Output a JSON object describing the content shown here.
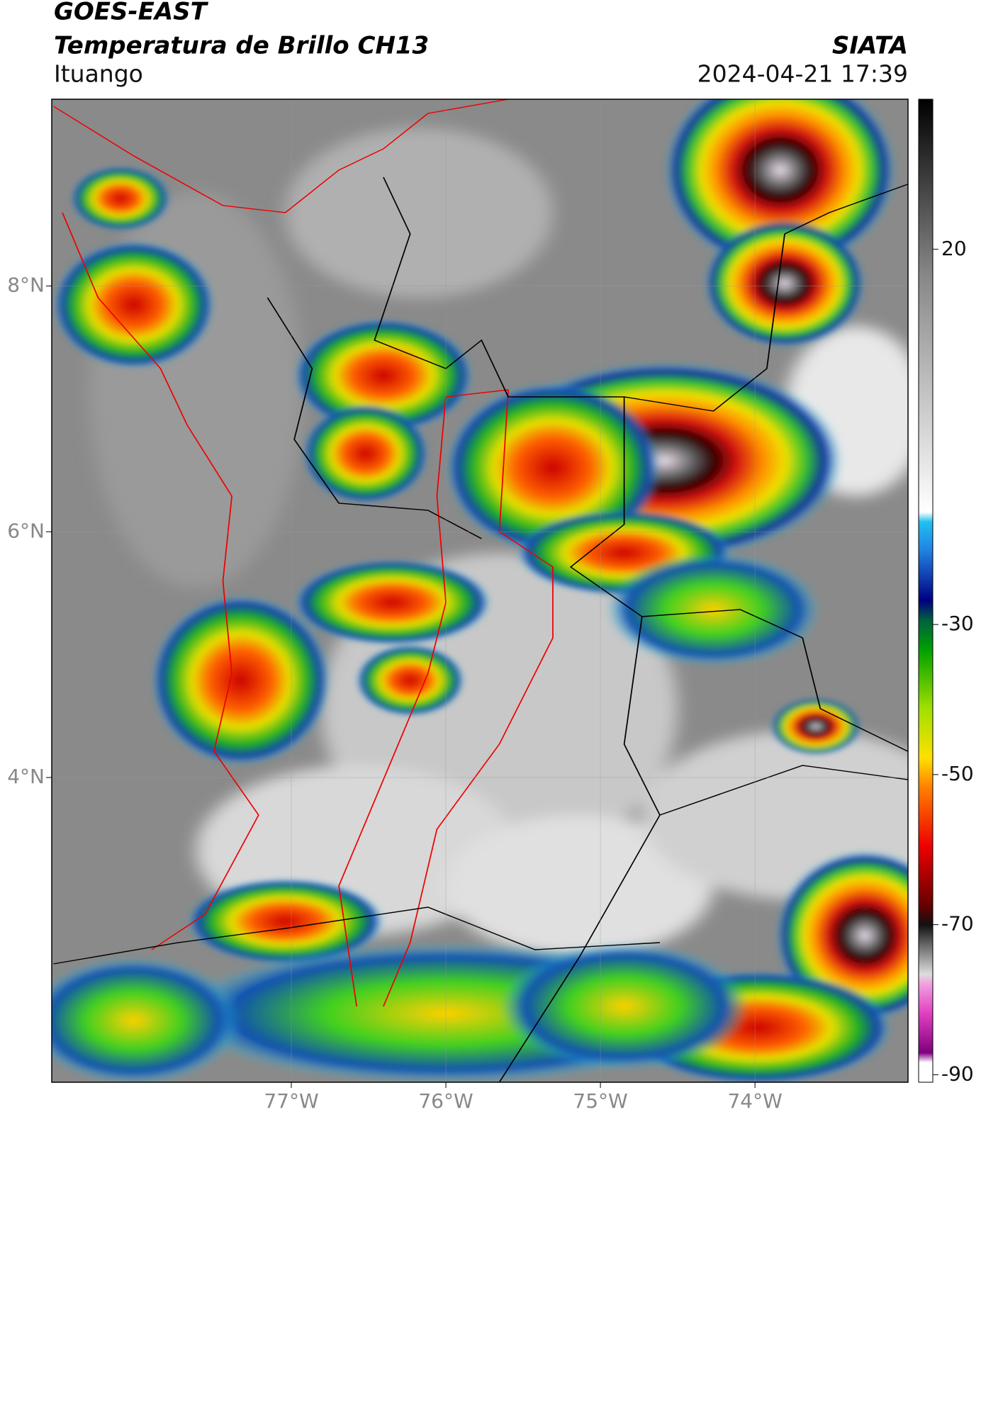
{
  "header": {
    "title": "GOES-EAST",
    "subtitle": "Temperatura de Brillo CH13",
    "source": "SIATA",
    "location": "Ituango",
    "datetime": "2024-04-21 17:39"
  },
  "chart_data": {
    "type": "map",
    "xlim": [
      -78.55,
      -73.01
    ],
    "ylim": [
      1.52,
      9.52
    ],
    "xticks": [
      {
        "value": -77,
        "label": "77°W"
      },
      {
        "value": -76,
        "label": "76°W"
      },
      {
        "value": -75,
        "label": "75°W"
      },
      {
        "value": -74,
        "label": "74°W"
      }
    ],
    "yticks": [
      {
        "value": 8,
        "label": "8°N"
      },
      {
        "value": 6,
        "label": "6°N"
      },
      {
        "value": 4,
        "label": "4°N"
      }
    ],
    "grid": true,
    "colorbar": {
      "clim": [
        -91,
        40
      ],
      "ticks": [
        20,
        -30,
        -50,
        -70,
        -90
      ]
    }
  }
}
